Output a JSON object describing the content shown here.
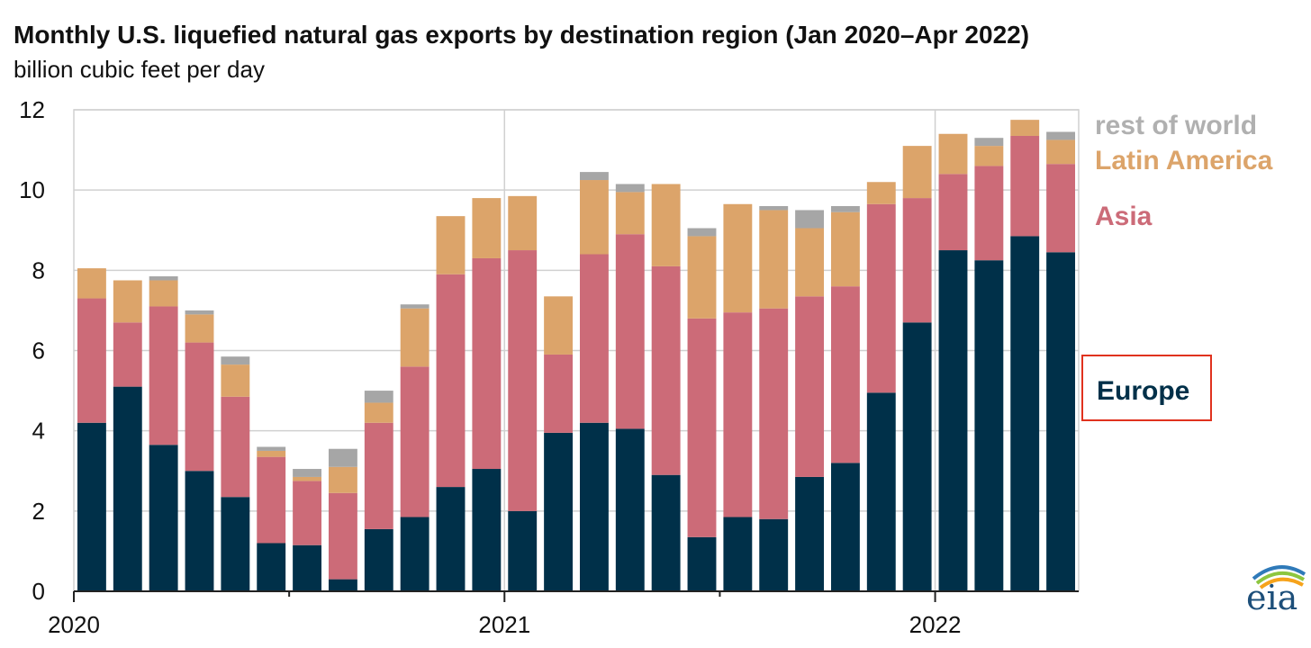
{
  "chart_data": {
    "type": "bar",
    "stacked": true,
    "title": "Monthly U.S. liquefied natural gas exports by destination region (Jan 2020–Apr 2022)",
    "subtitle": "billion cubic feet per day",
    "xlabel": "",
    "ylabel": "",
    "ylim": [
      0,
      12
    ],
    "yticks": [
      0,
      2,
      4,
      6,
      8,
      10,
      12
    ],
    "x_year_labels": [
      "2020",
      "2021",
      "2022"
    ],
    "categories": [
      "Jan 2020",
      "Feb 2020",
      "Mar 2020",
      "Apr 2020",
      "May 2020",
      "Jun 2020",
      "Jul 2020",
      "Aug 2020",
      "Sep 2020",
      "Oct 2020",
      "Nov 2020",
      "Dec 2020",
      "Jan 2021",
      "Feb 2021",
      "Mar 2021",
      "Apr 2021",
      "May 2021",
      "Jun 2021",
      "Jul 2021",
      "Aug 2021",
      "Sep 2021",
      "Oct 2021",
      "Nov 2021",
      "Dec 2021",
      "Jan 2022",
      "Feb 2022",
      "Mar 2022",
      "Apr 2022"
    ],
    "series": [
      {
        "name": "Europe",
        "color": "#003049",
        "values": [
          4.2,
          5.1,
          3.65,
          3.0,
          2.35,
          1.2,
          1.15,
          0.3,
          1.55,
          1.85,
          2.6,
          3.05,
          2.0,
          3.95,
          4.2,
          4.05,
          2.9,
          1.35,
          1.85,
          1.8,
          2.85,
          3.2,
          4.95,
          6.7,
          8.5,
          8.25,
          8.85,
          8.45
        ]
      },
      {
        "name": "Asia",
        "color": "#cc6b78",
        "values": [
          3.1,
          1.6,
          3.45,
          3.2,
          2.5,
          2.15,
          1.6,
          2.15,
          2.65,
          3.75,
          5.3,
          5.25,
          6.5,
          1.95,
          4.2,
          4.85,
          5.2,
          5.45,
          5.1,
          5.25,
          4.5,
          4.4,
          4.7,
          3.1,
          1.9,
          2.35,
          2.5,
          2.2
        ]
      },
      {
        "name": "Latin America",
        "color": "#dca46a",
        "values": [
          0.75,
          1.05,
          0.65,
          0.7,
          0.8,
          0.15,
          0.1,
          0.65,
          0.5,
          1.45,
          1.45,
          1.5,
          1.35,
          1.45,
          1.85,
          1.05,
          2.05,
          2.05,
          2.7,
          2.45,
          1.7,
          1.85,
          0.55,
          1.3,
          1.0,
          0.5,
          0.4,
          0.6
        ]
      },
      {
        "name": "rest of world",
        "color": "#a6a6a6",
        "values": [
          0,
          0,
          0.1,
          0.1,
          0.2,
          0.1,
          0.2,
          0.45,
          0.3,
          0.1,
          0,
          0,
          0,
          0,
          0.2,
          0.2,
          0,
          0.2,
          0,
          0.1,
          0.45,
          0.15,
          0,
          0,
          0,
          0.2,
          0,
          0.2
        ]
      }
    ],
    "gridlines": true,
    "legend": {
      "position": "right",
      "entries": [
        {
          "label": "rest of world",
          "color": "#b0b0b0"
        },
        {
          "label": "Latin America",
          "color": "#dca46a"
        },
        {
          "label": "Asia",
          "color": "#cc6b78"
        },
        {
          "label": "Europe",
          "color": "#003049",
          "highlighted": true,
          "highlight_color": "#e0321e"
        }
      ]
    }
  },
  "logo": {
    "text": "eia",
    "icon": "eia-logo-icon",
    "arc_colors": [
      "#2f7ab9",
      "#8dc63f",
      "#f6a31b"
    ]
  }
}
